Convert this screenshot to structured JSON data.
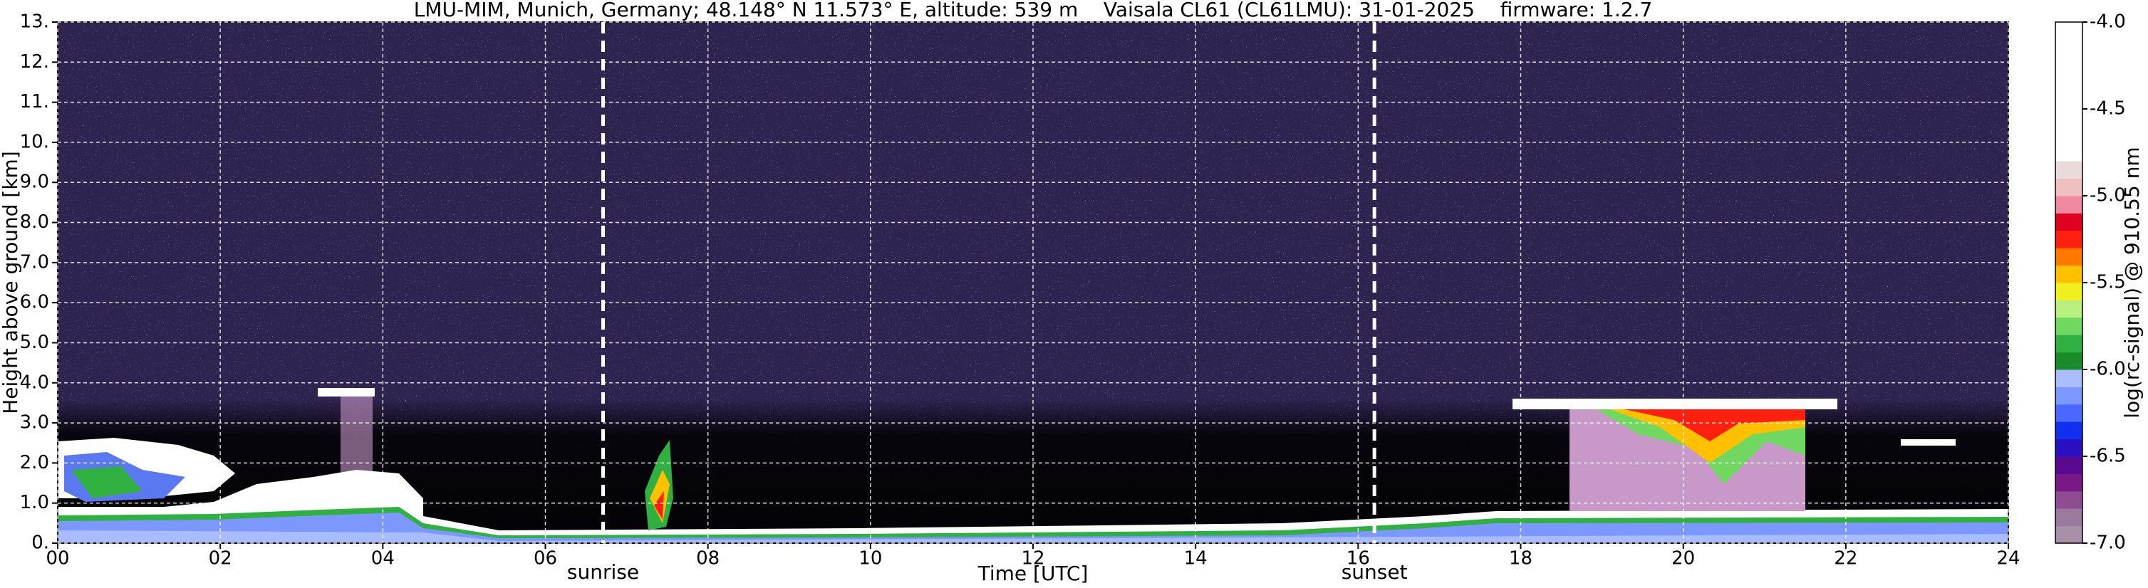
{
  "chart_data": {
    "type": "heatmap",
    "title": "LMU-MIM, Munich, Germany; 48.148° N 11.573° E, altitude: 539 m    Vaisala CL61 (CL61LMU): 31-01-2025    firmware: 1.2.7",
    "x_label": "Time [UTC]",
    "y_label": "Height above ground [km]",
    "colorbar_label": "log(rc-signal) @ 910.55 nm",
    "xlim": [
      0,
      24
    ],
    "xticks": [
      {
        "value": 0,
        "label": "00"
      },
      {
        "value": 2,
        "label": "02"
      },
      {
        "value": 4,
        "label": "04"
      },
      {
        "value": 6,
        "label": "06"
      },
      {
        "value": 8,
        "label": "08"
      },
      10,
      12,
      14,
      16,
      18,
      20,
      22,
      24
    ],
    "ylim": [
      0,
      13
    ],
    "yticks": [
      {
        "value": 0,
        "label": "0."
      },
      {
        "value": 1,
        "label": "1.0"
      },
      {
        "value": 2,
        "label": "2.0"
      },
      {
        "value": 3,
        "label": "3.0"
      },
      {
        "value": 4,
        "label": "4.0"
      },
      {
        "value": 5,
        "label": "5.0"
      },
      {
        "value": 6,
        "label": "6.0"
      },
      {
        "value": 7,
        "label": "7.0"
      },
      {
        "value": 8,
        "label": "8.0"
      },
      {
        "value": 9,
        "label": "9.0"
      },
      {
        "value": 10,
        "label": "10."
      },
      {
        "value": 11,
        "label": "11."
      },
      {
        "value": 12,
        "label": "12."
      },
      {
        "value": 13,
        "label": "13."
      }
    ],
    "clim": [
      -7,
      -4
    ],
    "cticks": [
      {
        "value": -7,
        "label": "-7.0"
      },
      -6.5,
      {
        "value": -6,
        "label": "-6.0"
      },
      -5.5,
      {
        "value": -5,
        "label": "-5.0"
      },
      -4.5,
      {
        "value": -4,
        "label": "-4.0"
      }
    ],
    "colormap": [
      {
        "from": -7.0,
        "to": -6.9,
        "color": "#a890a8"
      },
      {
        "from": -6.9,
        "to": -6.8,
        "color": "#9a7a9e"
      },
      {
        "from": -6.8,
        "to": -6.7,
        "color": "#8e4c92"
      },
      {
        "from": -6.7,
        "to": -6.6,
        "color": "#7a1888"
      },
      {
        "from": -6.6,
        "to": -6.5,
        "color": "#5a0a90"
      },
      {
        "from": -6.5,
        "to": -6.4,
        "color": "#2a10c0"
      },
      {
        "from": -6.4,
        "to": -6.3,
        "color": "#1030f0"
      },
      {
        "from": -6.3,
        "to": -6.2,
        "color": "#4a68ff"
      },
      {
        "from": -6.2,
        "to": -6.1,
        "color": "#7c98ff"
      },
      {
        "from": -6.1,
        "to": -6.0,
        "color": "#a8bcff"
      },
      {
        "from": -6.0,
        "to": -5.9,
        "color": "#1a8a2a"
      },
      {
        "from": -5.9,
        "to": -5.8,
        "color": "#30b040"
      },
      {
        "from": -5.8,
        "to": -5.7,
        "color": "#70d860"
      },
      {
        "from": -5.7,
        "to": -5.6,
        "color": "#b8f080"
      },
      {
        "from": -5.6,
        "to": -5.5,
        "color": "#f0f020"
      },
      {
        "from": -5.5,
        "to": -5.4,
        "color": "#ffc000"
      },
      {
        "from": -5.4,
        "to": -5.3,
        "color": "#ff7800"
      },
      {
        "from": -5.3,
        "to": -5.2,
        "color": "#ff2010"
      },
      {
        "from": -5.2,
        "to": -5.1,
        "color": "#e00020"
      },
      {
        "from": -5.1,
        "to": -5.0,
        "color": "#f088a0"
      },
      {
        "from": -5.0,
        "to": -4.9,
        "color": "#f0c0c0"
      },
      {
        "from": -4.9,
        "to": -4.8,
        "color": "#eadada"
      },
      {
        "from": -4.8,
        "to": -4.0,
        "color": "#ffffff"
      }
    ],
    "annotations": [
      {
        "text": "sunrise",
        "x": 6.71
      },
      {
        "text": "sunset",
        "x": 16.2
      }
    ],
    "grid": true
  }
}
